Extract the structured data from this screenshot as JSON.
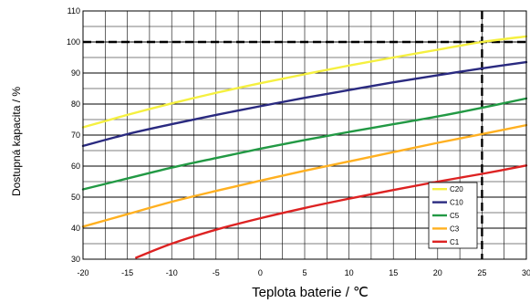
{
  "chart_data": {
    "type": "line",
    "title": "",
    "xlabel": "Teplota baterie / ℃",
    "ylabel": "Dostupná kapacita / %",
    "xlim": [
      -20,
      30
    ],
    "ylim": [
      30,
      110
    ],
    "x_ticks": [
      -20,
      -15,
      -10,
      -5,
      0,
      5,
      10,
      15,
      20,
      25,
      30
    ],
    "y_ticks": [
      30,
      40,
      50,
      60,
      70,
      80,
      90,
      100,
      110
    ],
    "x_tick_labels": [
      "-20",
      "-15",
      "-10",
      "-5",
      "0",
      "5",
      "10",
      "15",
      "20",
      "25",
      "30"
    ],
    "y_tick_labels": [
      "30",
      "40",
      "50",
      "60",
      "70",
      "80",
      "90",
      "100",
      "110"
    ],
    "grid": true,
    "legend_position": "bottom-right",
    "reference_lines": [
      {
        "axis": "y",
        "value": 100,
        "style": "dashed"
      },
      {
        "axis": "x",
        "value": 25,
        "style": "dashed"
      }
    ],
    "series": [
      {
        "name": "C20",
        "color": "#f5f040",
        "x": [
          -20,
          -15,
          -10,
          -5,
          0,
          5,
          10,
          15,
          20,
          25,
          30
        ],
        "y": [
          72.5,
          76.5,
          80.2,
          83.6,
          86.7,
          89.6,
          92.4,
          95,
          97.5,
          100,
          101.8
        ]
      },
      {
        "name": "C10",
        "color": "#2a2a80",
        "x": [
          -20,
          -15,
          -10,
          -5,
          0,
          5,
          10,
          15,
          20,
          25,
          30
        ],
        "y": [
          66.5,
          70.3,
          73.5,
          76.5,
          79.3,
          82,
          84.5,
          87,
          89.3,
          91.5,
          93.5
        ]
      },
      {
        "name": "C5",
        "color": "#229944",
        "x": [
          -20,
          -15,
          -10,
          -5,
          0,
          5,
          10,
          15,
          20,
          25,
          30
        ],
        "y": [
          52.5,
          56,
          59.5,
          62.6,
          65.6,
          68.4,
          71,
          73.5,
          76,
          78.8,
          81.8
        ]
      },
      {
        "name": "C3",
        "color": "#ffb020",
        "x": [
          -20,
          -15,
          -10,
          -5,
          0,
          5,
          10,
          15,
          20,
          25,
          30
        ],
        "y": [
          40.5,
          44.5,
          48.5,
          52,
          55.3,
          58.5,
          61.5,
          64.5,
          67.5,
          70.3,
          73.2
        ]
      },
      {
        "name": "C1",
        "color": "#dd2222",
        "x": [
          -14,
          -10,
          -5,
          0,
          5,
          10,
          15,
          20,
          25,
          30
        ],
        "y": [
          30.5,
          35,
          39.5,
          43.2,
          46.5,
          49.5,
          52.3,
          55,
          57.5,
          60.2
        ]
      }
    ]
  }
}
